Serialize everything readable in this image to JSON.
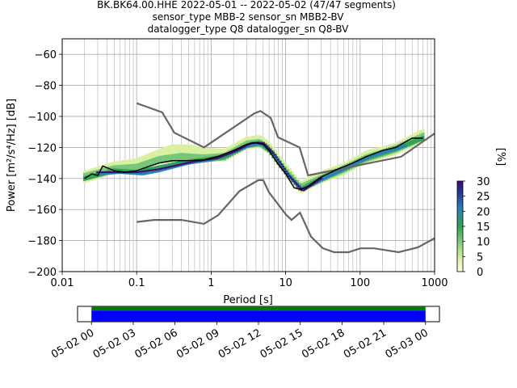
{
  "title_lines": [
    "BK.BK64.00.HHE   2022-05-01 -- 2022-05-02  (47/47 segments)",
    "sensor_type MBB-2 sensor_sn MBB2-BV",
    "datalogger_type Q8 datalogger_sn Q8-BV"
  ],
  "colors": {
    "background": "#ffffff",
    "grid": "#b0b0b0",
    "noise_model": "#666666",
    "mode_line": "#000000",
    "coverage_green": "#008000",
    "coverage_blue": "#0000ff"
  },
  "chart_data": [
    {
      "type": "heatmap",
      "title": "BK.BK64.00.HHE   2022-05-01 -- 2022-05-02  (47/47 segments)",
      "xlabel": "Period [s]",
      "ylabel": "Power [m²/s⁴/Hz] [dB]",
      "x_scale": "log",
      "xlim": [
        0.01,
        1000
      ],
      "ylim": [
        -200,
        -50
      ],
      "grid": true,
      "x_ticks": [
        {
          "value": 0.01,
          "label": "0.01"
        },
        {
          "value": 0.1,
          "label": "0.1"
        },
        {
          "value": 1,
          "label": "1"
        },
        {
          "value": 10,
          "label": "10"
        },
        {
          "value": 100,
          "label": "100"
        },
        {
          "value": 1000,
          "label": "1000"
        }
      ],
      "y_ticks": [
        {
          "value": -60,
          "label": "−60"
        },
        {
          "value": -80,
          "label": "−80"
        },
        {
          "value": -100,
          "label": "−100"
        },
        {
          "value": -120,
          "label": "−120"
        },
        {
          "value": -140,
          "label": "−140"
        },
        {
          "value": -160,
          "label": "−160"
        },
        {
          "value": -180,
          "label": "−180"
        },
        {
          "value": -200,
          "label": "−200"
        }
      ],
      "colorbar": {
        "label": "[%]",
        "range": [
          0,
          30
        ],
        "ticks": [
          {
            "value": 0,
            "label": "0"
          },
          {
            "value": 5,
            "label": "5"
          },
          {
            "value": 10,
            "label": "10"
          },
          {
            "value": 15,
            "label": "15"
          },
          {
            "value": 20,
            "label": "20"
          },
          {
            "value": 25,
            "label": "25"
          },
          {
            "value": 30,
            "label": "30"
          }
        ]
      },
      "high_noise_model": [
        [
          0.1,
          -91.5
        ],
        [
          0.22,
          -97.4
        ],
        [
          0.32,
          -110.5
        ],
        [
          0.8,
          -120
        ],
        [
          3.8,
          -98
        ],
        [
          4.6,
          -96.5
        ],
        [
          6.3,
          -101
        ],
        [
          7.9,
          -113.5
        ],
        [
          15.4,
          -120
        ],
        [
          20,
          -138
        ],
        [
          354.8,
          -126
        ],
        [
          1000,
          -111
        ]
      ],
      "low_noise_model": [
        [
          0.1,
          -168
        ],
        [
          0.17,
          -166.7
        ],
        [
          0.4,
          -166.7
        ],
        [
          0.8,
          -169.2
        ],
        [
          1.24,
          -163.7
        ],
        [
          2.4,
          -148.1
        ],
        [
          4.3,
          -141.1
        ],
        [
          5,
          -141.1
        ],
        [
          6,
          -149
        ],
        [
          10,
          -163
        ],
        [
          12,
          -166.7
        ],
        [
          15.6,
          -162
        ],
        [
          21.9,
          -177.5
        ],
        [
          31.6,
          -185
        ],
        [
          45,
          -187.5
        ],
        [
          70,
          -187.5
        ],
        [
          101,
          -185
        ],
        [
          154,
          -185
        ],
        [
          328,
          -187.5
        ],
        [
          600,
          -184.4
        ],
        [
          1000,
          -178.5
        ]
      ],
      "mode_line": [
        [
          0.02,
          -140
        ],
        [
          0.025,
          -137
        ],
        [
          0.03,
          -138
        ],
        [
          0.035,
          -132
        ],
        [
          0.05,
          -135
        ],
        [
          0.07,
          -136
        ],
        [
          0.1,
          -135
        ],
        [
          0.15,
          -132
        ],
        [
          0.2,
          -130
        ],
        [
          0.3,
          -128.5
        ],
        [
          0.5,
          -128.5
        ],
        [
          0.8,
          -128
        ],
        [
          1.2,
          -126
        ],
        [
          2,
          -122
        ],
        [
          3,
          -118
        ],
        [
          4,
          -117
        ],
        [
          5,
          -118
        ],
        [
          6,
          -122
        ],
        [
          8,
          -131
        ],
        [
          10,
          -137
        ],
        [
          13,
          -146
        ],
        [
          16,
          -147
        ],
        [
          20,
          -145
        ],
        [
          30,
          -139
        ],
        [
          50,
          -134
        ],
        [
          80,
          -130
        ],
        [
          120,
          -126
        ],
        [
          200,
          -122
        ],
        [
          300,
          -120
        ],
        [
          500,
          -114
        ],
        [
          700,
          -114
        ]
      ],
      "density_bands": [
        {
          "color": "#d9f0a3",
          "center": [
            [
              0.02,
              -139
            ],
            [
              0.05,
              -133
            ],
            [
              0.1,
              -131
            ],
            [
              0.2,
              -125
            ],
            [
              0.3,
              -122
            ],
            [
              0.5,
              -122
            ],
            [
              0.8,
              -124
            ],
            [
              1.5,
              -125
            ],
            [
              3,
              -117
            ],
            [
              4.5,
              -116
            ],
            [
              6,
              -120
            ],
            [
              10,
              -134
            ],
            [
              16,
              -146
            ],
            [
              30,
              -139
            ],
            [
              60,
              -134
            ],
            [
              120,
              -126
            ],
            [
              300,
              -121
            ],
            [
              700,
              -112
            ]
          ],
          "width_db": 8
        },
        {
          "color": "#78c679",
          "center": [
            [
              0.02,
              -139
            ],
            [
              0.05,
              -134
            ],
            [
              0.1,
              -133
            ],
            [
              0.2,
              -128
            ],
            [
              0.4,
              -126
            ],
            [
              0.8,
              -127
            ],
            [
              1.5,
              -126
            ],
            [
              3,
              -118
            ],
            [
              4.5,
              -117
            ],
            [
              6,
              -121
            ],
            [
              10,
              -135
            ],
            [
              16,
              -146
            ],
            [
              30,
              -140
            ],
            [
              60,
              -134
            ],
            [
              120,
              -127
            ],
            [
              300,
              -121
            ],
            [
              700,
              -113
            ]
          ],
          "width_db": 5
        },
        {
          "color": "#31a354",
          "center": [
            [
              0.02,
              -140
            ],
            [
              0.05,
              -135
            ],
            [
              0.1,
              -136
            ],
            [
              0.2,
              -133
            ],
            [
              0.4,
              -130
            ],
            [
              0.8,
              -128
            ],
            [
              1.5,
              -126
            ],
            [
              3,
              -119
            ],
            [
              4.5,
              -117
            ],
            [
              6,
              -122
            ],
            [
              10,
              -136
            ],
            [
              16,
              -147
            ],
            [
              30,
              -140
            ],
            [
              60,
              -134
            ],
            [
              120,
              -127
            ],
            [
              300,
              -121
            ],
            [
              700,
              -114
            ]
          ],
          "width_db": 3
        },
        {
          "color": "#2c7fb8",
          "center": [
            [
              0.03,
              -137
            ],
            [
              0.06,
              -136
            ],
            [
              0.12,
              -137
            ],
            [
              0.2,
              -135
            ],
            [
              0.5,
              -130
            ],
            [
              1,
              -128
            ],
            [
              2,
              -123
            ],
            [
              3.5,
              -118
            ],
            [
              5,
              -118
            ],
            [
              7,
              -125
            ],
            [
              11,
              -138
            ],
            [
              17,
              -147
            ],
            [
              30,
              -141
            ],
            [
              60,
              -134
            ],
            [
              150,
              -125
            ],
            [
              400,
              -119
            ]
          ],
          "width_db": 2
        },
        {
          "color": "#3b0f6f",
          "center": [
            [
              0.03,
              -136
            ],
            [
              0.06,
              -136
            ],
            [
              0.1,
              -136
            ],
            [
              0.2,
              -134
            ],
            [
              0.6,
              -129
            ],
            [
              1.2,
              -127
            ],
            [
              2.2,
              -122
            ],
            [
              3.5,
              -117
            ],
            [
              5,
              -117
            ],
            [
              7,
              -124
            ],
            [
              11,
              -138
            ],
            [
              17,
              -148
            ],
            [
              30,
              -140
            ]
          ],
          "width_db": 1
        }
      ]
    },
    {
      "type": "timeline",
      "x_range": [
        "2022-05-01 23:00",
        "2022-05-03 01:00"
      ],
      "ticks": [
        "05-02 00",
        "05-02 03",
        "05-02 06",
        "05-02 09",
        "05-02 12",
        "05-02 15",
        "05-02 18",
        "05-02 21",
        "05-03 00"
      ],
      "coverage": [
        {
          "row": "top",
          "color": "#008000",
          "start": "2022-05-02 00:00",
          "end": "2022-05-03 00:00"
        },
        {
          "row": "bottom",
          "color": "#0000ff",
          "start": "2022-05-02 00:00",
          "end": "2022-05-03 00:00"
        }
      ]
    }
  ]
}
